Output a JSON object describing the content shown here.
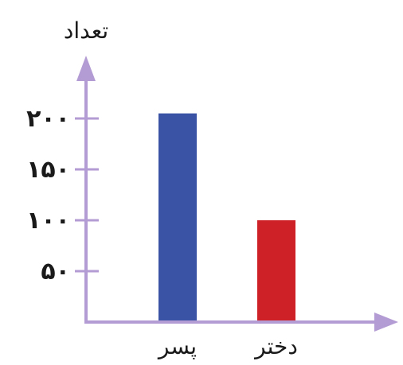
{
  "chart_data": {
    "type": "bar",
    "title": "",
    "ylabel": "تعداد",
    "xlabel": "",
    "categories": [
      "پسر",
      "دختر"
    ],
    "values": [
      205,
      100
    ],
    "ylim": [
      0,
      200
    ],
    "yticks": [
      50,
      100,
      150,
      200
    ],
    "ytick_labels": [
      "۵۰",
      "۱۰۰",
      "۱۵۰",
      "۲۰۰"
    ],
    "bar_colors": [
      "#3a53a4",
      "#cd2027"
    ],
    "axis_color": "#b39bd3",
    "grid": false,
    "legend": "none"
  }
}
